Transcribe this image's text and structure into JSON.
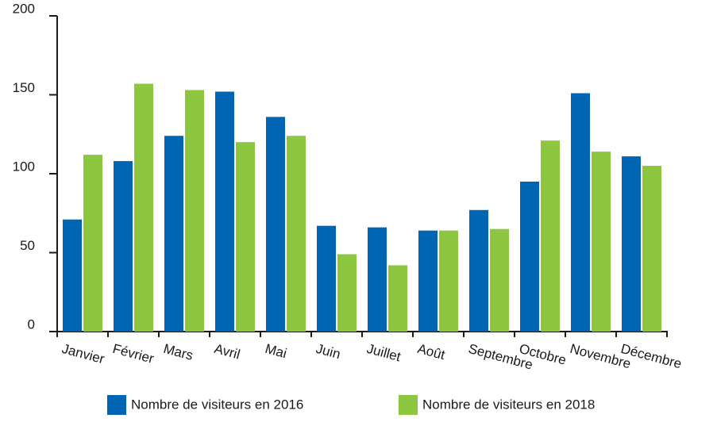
{
  "chart_data": {
    "type": "bar",
    "categories": [
      "Janvier",
      "Février",
      "Mars",
      "Avril",
      "Mai",
      "Juin",
      "Juillet",
      "Août",
      "Septembre",
      "Octobre",
      "Novembre",
      "Décembre"
    ],
    "series": [
      {
        "name": "Nombre de visiteurs en 2016",
        "color": "#0066b3",
        "values": [
          71,
          108,
          124,
          152,
          136,
          67,
          66,
          64,
          77,
          95,
          151,
          111
        ]
      },
      {
        "name": "Nombre de visiteurs en 2018",
        "color": "#8dc63f",
        "values": [
          112,
          157,
          153,
          120,
          124,
          49,
          42,
          64,
          65,
          121,
          114,
          105
        ]
      }
    ],
    "ylim": [
      0,
      200
    ],
    "yticks": [
      0,
      50,
      100,
      150,
      200
    ],
    "grid": false,
    "legend": "bottom"
  }
}
